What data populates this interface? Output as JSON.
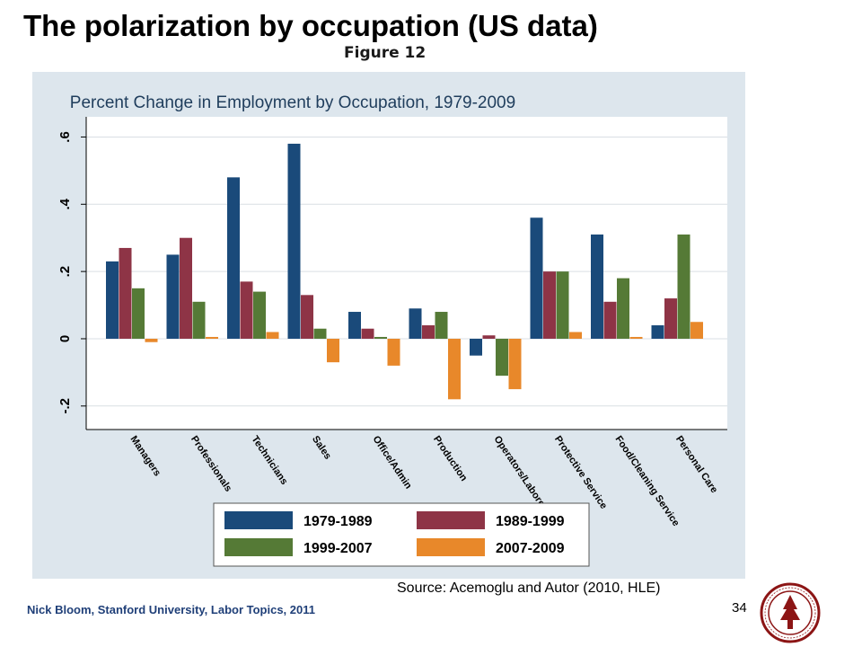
{
  "slide": {
    "title": "The polarization by occupation (US data)",
    "figure_label": "Figure 12",
    "source": "Source: Acemoglu and Autor (2010, HLE)",
    "footer": "Nick Bloom, Stanford University, Labor Topics, 2011",
    "page_number": "34",
    "logo": "stanford-seal"
  },
  "chart_data": {
    "type": "bar",
    "title": "Percent Change in Employment by Occupation, 1979-2009",
    "xlabel": "",
    "ylabel": "",
    "ylim": [
      -0.27,
      0.66
    ],
    "yticks": [
      -0.2,
      0,
      0.2,
      0.4,
      0.6
    ],
    "ytick_labels": [
      "-.2",
      "0",
      ".2",
      ".4",
      ".6"
    ],
    "grid": true,
    "legend_position": "bottom",
    "categories": [
      "Managers",
      "Professionals",
      "Technicians",
      "Sales",
      "Office/Admin",
      "Production",
      "Operators/Laborers",
      "Protective Service",
      "Food/Cleaning Service",
      "Personal Care"
    ],
    "series": [
      {
        "name": "1979-1989",
        "color": "#1a4a7a",
        "values": [
          0.23,
          0.25,
          0.48,
          0.58,
          0.08,
          0.09,
          -0.05,
          0.36,
          0.31,
          0.04
        ]
      },
      {
        "name": "1989-1999",
        "color": "#8e3446",
        "values": [
          0.27,
          0.3,
          0.17,
          0.13,
          0.03,
          0.04,
          0.01,
          0.2,
          0.11,
          0.12
        ]
      },
      {
        "name": "1999-2007",
        "color": "#557a36",
        "values": [
          0.15,
          0.11,
          0.14,
          0.03,
          0.0,
          0.08,
          -0.11,
          0.2,
          0.18,
          0.31
        ]
      },
      {
        "name": "2007-2009",
        "color": "#e8882a",
        "values": [
          -0.01,
          0.0,
          0.02,
          -0.07,
          -0.08,
          -0.18,
          -0.15,
          0.02,
          0.0,
          0.05
        ]
      }
    ],
    "colors": {
      "panel_bg": "#dde6ed",
      "plot_bg": "#ffffff",
      "grid": "#d9dfe4",
      "title": "#1f3d5c"
    }
  }
}
